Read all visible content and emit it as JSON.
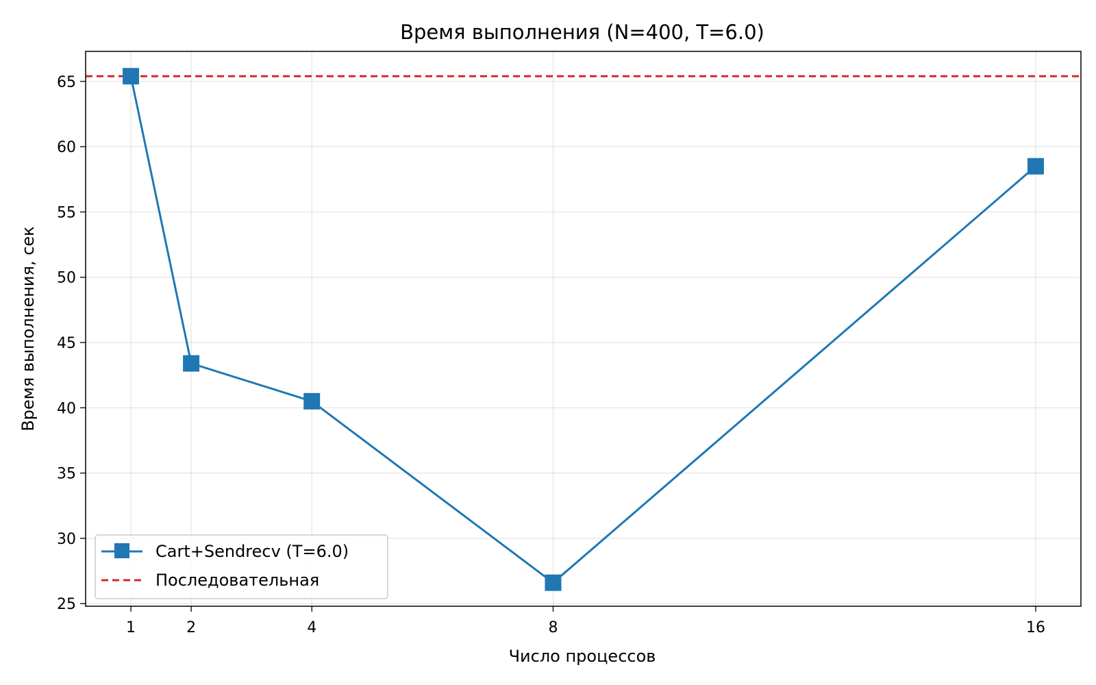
{
  "chart_data": {
    "type": "line",
    "title": "Время выполнения (N=400, T=6.0)",
    "xlabel": "Число процессов",
    "ylabel": "Время выполнения, сек",
    "x": [
      1,
      2,
      4,
      8,
      16
    ],
    "x_ticks": [
      "1",
      "2",
      "4",
      "8",
      "16"
    ],
    "y_ticks": [
      25,
      30,
      35,
      40,
      45,
      50,
      55,
      60,
      65
    ],
    "xlim": [
      0.25,
      16.75
    ],
    "ylim": [
      24.8,
      67.3
    ],
    "grid": true,
    "legend_position": "lower-left",
    "series": [
      {
        "name": "Cart+Sendrecv (T=6.0)",
        "values": [
          65.4,
          43.4,
          40.5,
          26.6,
          58.5
        ],
        "color": "#1f77b4",
        "marker": "square",
        "line_style": "solid"
      }
    ],
    "reference_lines": [
      {
        "name": "Последовательная",
        "y": 65.4,
        "color": "#d62728",
        "line_style": "dashed"
      }
    ]
  }
}
